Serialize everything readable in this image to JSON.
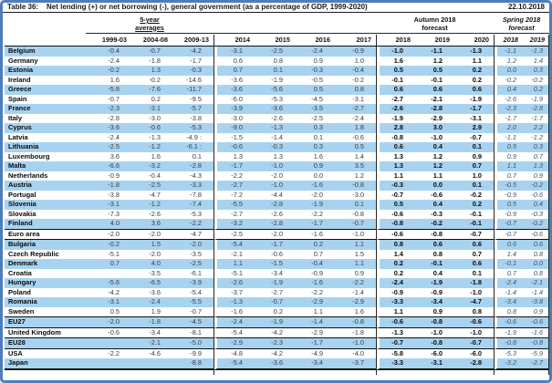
{
  "title_bar": {
    "label": "Table 36:",
    "title": "Net lending (+) or net borrowing (-), general government (as a percentage of GDP, 1999-2020)",
    "date": "22.10.2018"
  },
  "header": {
    "averages_line1": "5-year",
    "averages_line2": "averages",
    "autumn_line1": "Autumn 2018",
    "autumn_line2": "forecast",
    "spring_line1": "Spring 2018",
    "spring_line2": "forecast",
    "columns": [
      "1999-03",
      "2004-08",
      "2009-13",
      "2014",
      "2015",
      "2016",
      "2017",
      "2018",
      "2019",
      "2020",
      "2018",
      "2019"
    ]
  },
  "colors": {
    "row_highlight": "#a8d3f0",
    "frame_border": "#4d7ebc",
    "rule_line": "#101010"
  },
  "table": {
    "rows": [
      {
        "name": "Belgium",
        "values": [
          "-0.4",
          "-0.7",
          "-4.2",
          "-3.1",
          "-2.5",
          "-2.4",
          "-0.9",
          "-1.0",
          "-1.1",
          "-1.3",
          "-1.1",
          "-1.3"
        ]
      },
      {
        "name": "Germany",
        "values": [
          "-2.4",
          "-1.8",
          "-1.7",
          "0.6",
          "0.8",
          "0.9",
          "1.0",
          "1.6",
          "1.2",
          "1.1",
          "1.2",
          "1.4"
        ]
      },
      {
        "name": "Estonia",
        "values": [
          "-0.2",
          "1.3",
          "-0.3",
          "0.7",
          "0.1",
          "-0.3",
          "-0.4",
          "0.5",
          "0.5",
          "0.2",
          "0.0",
          "0.3"
        ]
      },
      {
        "name": "Ireland",
        "values": [
          "1.6",
          "-0.2",
          "-14.6",
          "-3.6",
          "-1.9",
          "-0.5",
          "-0.2",
          "-0.1",
          "-0.1",
          "0.2",
          "-0.2",
          "-0.2"
        ]
      },
      {
        "name": "Greece",
        "values": [
          "-5.8",
          "-7.6",
          "-11.7",
          "-3.6",
          "-5.6",
          "0.5",
          "0.8",
          "0.6",
          "0.6",
          "0.6",
          "0.4",
          "0.2"
        ]
      },
      {
        "name": "Spain",
        "values": [
          "-0.7",
          "0.2",
          "-9.5",
          "-6.0",
          "-5.3",
          "-4.5",
          "-3.1",
          "-2.7",
          "-2.1",
          "-1.9",
          "-2.6",
          "-1.9"
        ]
      },
      {
        "name": "France",
        "values": [
          "-2.3",
          "-3.1",
          "-5.7",
          "-3.9",
          "-3.6",
          "-3.5",
          "-2.7",
          "-2.6",
          "-2.8",
          "-1.7",
          "-2.3",
          "-2.8"
        ]
      },
      {
        "name": "Italy",
        "values": [
          "-2.8",
          "-3.0",
          "-3.8",
          "-3.0",
          "-2.6",
          "-2.5",
          "-2.4",
          "-1.9",
          "-2.9",
          "-3.1",
          "-1.7",
          "-1.7"
        ]
      },
      {
        "name": "Cyprus",
        "values": [
          "-3.6",
          "-0.6",
          "-5.3",
          "-9.0",
          "-1.3",
          "0.3",
          "1.8",
          "2.8",
          "3.0",
          "2.9",
          "2.0",
          "2.2"
        ]
      },
      {
        "name": "Latvia",
        "values": [
          "-2.4",
          "-1.3",
          "-4.9 :",
          "-1.5",
          "-1.4",
          "0.1",
          "-0.6",
          "-0.8",
          "-1.0",
          "-0.7",
          "-1.1",
          "-1.2"
        ]
      },
      {
        "name": "Lithuania",
        "values": [
          "-2.5",
          "-1.2",
          "-6.1 :",
          "-0.6",
          "-0.3",
          "0.3",
          "0.5",
          "0.6",
          "0.4",
          "0.1",
          "0.5",
          "0.3"
        ]
      },
      {
        "name": "Luxembourg",
        "values": [
          "3.6",
          "1.6",
          "0.1",
          "1.3",
          "1.3",
          "1.6",
          "1.4",
          "1.3",
          "1.2",
          "0.9",
          "0.9",
          "0.7"
        ]
      },
      {
        "name": "Malta",
        "values": [
          "-6.6",
          "-3.2",
          "-2.8",
          "-1.7",
          "-1.0",
          "0.9",
          "3.5",
          "1.3",
          "1.2",
          "0.7",
          "1.1",
          "1.3"
        ]
      },
      {
        "name": "Netherlands",
        "values": [
          "-0.9",
          "-0.4",
          "-4.3",
          "-2.2",
          "-2.0",
          "0.0",
          "1.2",
          "1.1",
          "1.1",
          "1.0",
          "0.7",
          "0.9"
        ]
      },
      {
        "name": "Austria",
        "values": [
          "-1.8",
          "-2.5",
          "-3.3",
          "-2.7",
          "-1.0",
          "-1.6",
          "-0.8",
          "-0.3",
          "0.0",
          "0.1",
          "-0.5",
          "-0.2"
        ]
      },
      {
        "name": "Portugal",
        "values": [
          "-3.8",
          "-4.7",
          "-7.8",
          "-7.2",
          "-4.4",
          "-2.0",
          "-3.0",
          "-0.7",
          "-0.6",
          "-0.2",
          "-0.9",
          "-0.6"
        ]
      },
      {
        "name": "Slovenia",
        "values": [
          "-3.1",
          "-1.2",
          "-7.4",
          "-5.5",
          "-2.8",
          "-1.9",
          "0.1",
          "0.5",
          "0.4",
          "0.2",
          "0.5",
          "0.4"
        ]
      },
      {
        "name": "Slovakia",
        "values": [
          "-7.3",
          "-2.6",
          "-5.3",
          "-2.7",
          "-2.6",
          "-2.2",
          "-0.8",
          "-0.6",
          "-0.3",
          "-0.1",
          "-0.9",
          "-0.3"
        ]
      },
      {
        "name": "Finland",
        "values": [
          "4.0",
          "3.6",
          "-2.2",
          "-3.2",
          "-2.8",
          "-1.7",
          "-0.7",
          "-0.8",
          "-0.2",
          "-0.1",
          "-0.7",
          "-0.2"
        ]
      },
      {
        "name": "Euro area",
        "rule_top": true,
        "rule_bottom": true,
        "values": [
          "-2.0",
          "-2.0",
          "-4.7",
          "-2.5",
          "-2.0",
          "-1.6",
          "-1.0",
          "-0.6",
          "-0.8",
          "-0.7",
          "-0.7",
          "-0.6"
        ]
      },
      {
        "name": "Bulgaria",
        "values": [
          "-0.2",
          "1.5",
          "-2.0",
          "-5.4",
          "-1.7",
          "0.2",
          "1.1",
          "0.8",
          "0.6",
          "0.6",
          "0.6",
          "0.6"
        ]
      },
      {
        "name": "Czech Republic",
        "values": [
          "-5.1",
          "-2.0",
          "-3.5",
          "-2.1",
          "-0.6",
          "0.7",
          "1.5",
          "1.4",
          "0.8",
          "0.7",
          "1.4",
          "0.8"
        ]
      },
      {
        "name": "Denmark",
        "values": [
          "0.7",
          "4.0",
          "-2.5",
          "1.1",
          "-1.5",
          "-0.4",
          "1.1",
          "0.2",
          "-0.1",
          "0.6",
          "-0.1",
          "0.0"
        ]
      },
      {
        "name": "Croatia",
        "values": [
          "",
          "-3.5",
          "-6.1",
          "-5.1",
          "-3.4",
          "-0.9",
          "0.9",
          "0.2",
          "0.4",
          "0.1",
          "0.7",
          "0.8"
        ]
      },
      {
        "name": "Hungary",
        "values": [
          "-5.6",
          "-6.5",
          "-3.9",
          "-2.6",
          "-1.9",
          "-1.6",
          "-2.2",
          "-2.4",
          "-1.9",
          "-1.8",
          "-2.4",
          "-2.1"
        ]
      },
      {
        "name": "Poland",
        "values": [
          "-4.2",
          "-3.6",
          "-5.4",
          "-3.7",
          "-2.7",
          "-2.2",
          "-1.4",
          "-0.9",
          "-0.9",
          "-1.0",
          "-1.4",
          "-1.4"
        ]
      },
      {
        "name": "Romania",
        "values": [
          "-3.1",
          "-2.4",
          "-5.5",
          "-1.3",
          "-0.7",
          "-2.9",
          "-2.9",
          "-3.3",
          "-3.4",
          "-4.7",
          "-3.4",
          "-3.8"
        ]
      },
      {
        "name": "Sweden",
        "values": [
          "0.5",
          "1.9",
          "-0.7",
          "-1.6",
          "0.2",
          "1.1",
          "1.6",
          "1.1",
          "0.9",
          "0.8",
          "0.8",
          "0.9"
        ]
      },
      {
        "name": "EU27",
        "rule_top": true,
        "rule_bottom": true,
        "values": [
          "-2.0",
          "-1.8",
          "-4.5",
          "-2.4",
          "-1.9",
          "-1.4",
          "-0.8",
          "-0.6",
          "-0.8",
          "-0.6",
          "-0.6",
          "-0.6"
        ]
      },
      {
        "name": "United Kingdom",
        "values": [
          "-0.6",
          "-3.4",
          "-8.1",
          "-5.4",
          "-4.2",
          "-2.9",
          "-1.8",
          "-1.3",
          "-1.0",
          "-1.0",
          "-1.9",
          "-1.6"
        ]
      },
      {
        "name": "EU28",
        "rule_top": true,
        "rule_bottom": true,
        "values": [
          "",
          "-2.1",
          "-5.0",
          "-2.9",
          "-2.3",
          "-1.7",
          "-1.0",
          "-0.7",
          "-0.8",
          "-0.7",
          "-0.8",
          "-0.8"
        ]
      },
      {
        "name": "USA",
        "values": [
          "-2.2",
          "-4.6",
          "-9.9",
          "-4.8",
          "-4.2",
          "-4.9",
          "-4.0",
          "-5.8",
          "-6.0",
          "-6.0",
          "-5.3",
          "-5.9"
        ]
      },
      {
        "name": "Japan",
        "rule_end": true,
        "values": [
          "",
          "",
          "-8.8",
          "-5.4",
          "-3.6",
          "-3.4",
          "-3.7",
          "-3.3",
          "-3.1",
          "-2.8",
          "-3.2",
          "-2.7"
        ]
      }
    ]
  }
}
